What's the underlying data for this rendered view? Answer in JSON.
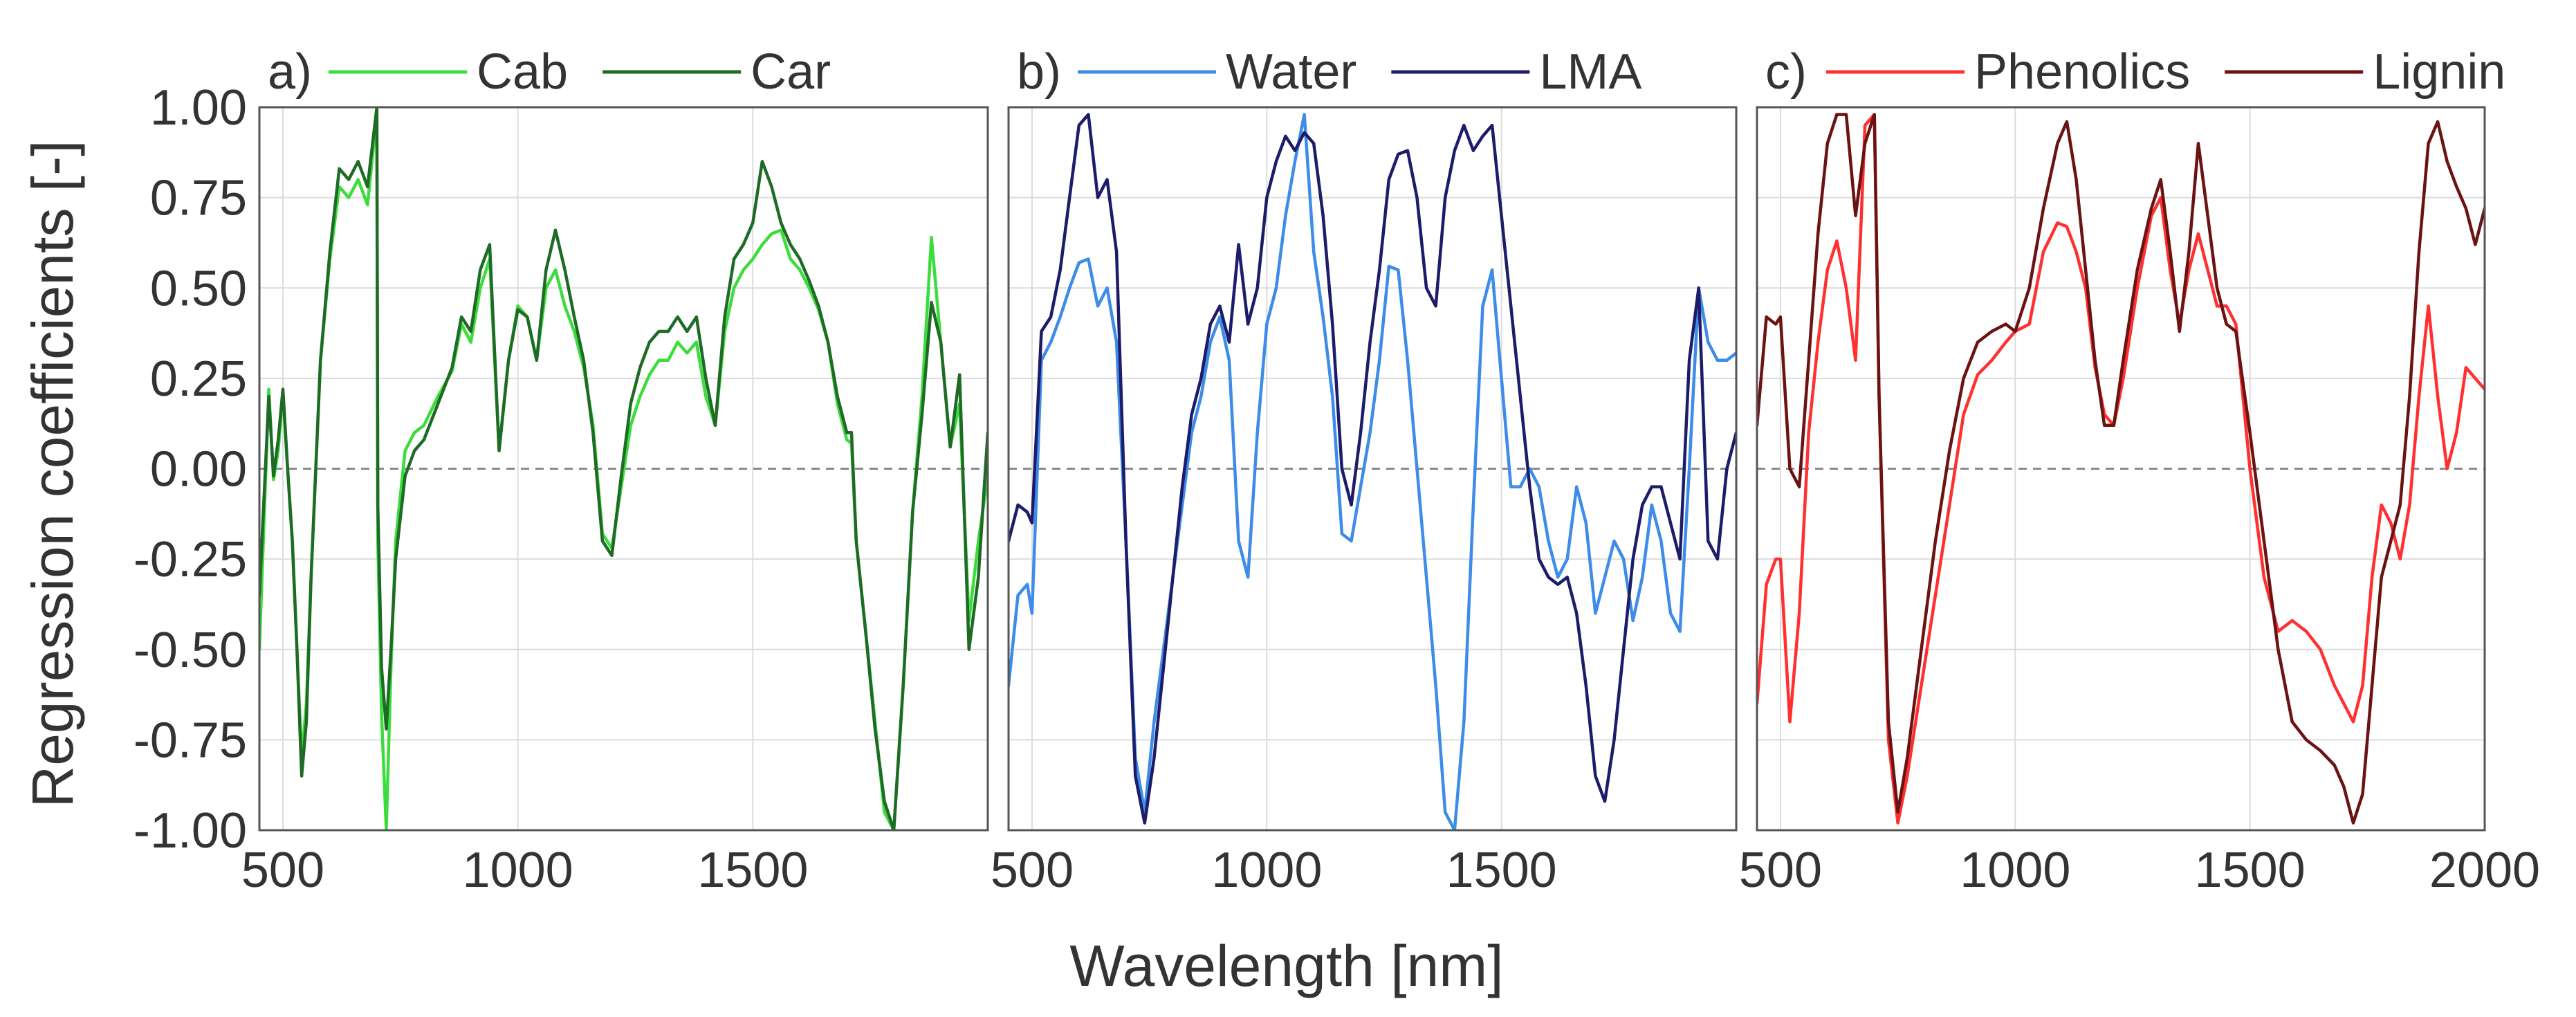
{
  "chart_data": [
    {
      "type": "line",
      "panel_label": "a)",
      "xlabel": "Wavelength [nm]",
      "ylabel": "Regression coefficients [-]",
      "xlim": [
        450,
        2000
      ],
      "ylim": [
        -1.0,
        1.0
      ],
      "xticks": [
        500,
        1000,
        1500
      ],
      "xtick_labels": [
        "500",
        "1000",
        "1500"
      ],
      "yticks": [
        1.0,
        0.75,
        0.5,
        0.25,
        0.0,
        -0.25,
        -0.5,
        -0.75,
        -1.0
      ],
      "ytick_labels": [
        "1.00",
        "0.75",
        "0.50",
        "0.25",
        "0.00",
        "-0.25",
        "-0.50",
        "-0.75",
        "-1.00"
      ],
      "grid": true,
      "zero_line": true,
      "series": [
        {
          "name": "Cab",
          "color": "#3ddc3d",
          "x": [
            450,
            470,
            480,
            490,
            500,
            510,
            520,
            530,
            540,
            550,
            560,
            580,
            600,
            620,
            640,
            660,
            680,
            700,
            702,
            710,
            720,
            730,
            740,
            760,
            780,
            800,
            830,
            860,
            880,
            900,
            920,
            940,
            960,
            980,
            1000,
            1020,
            1040,
            1060,
            1080,
            1100,
            1120,
            1140,
            1160,
            1180,
            1200,
            1220,
            1240,
            1260,
            1280,
            1300,
            1320,
            1340,
            1360,
            1380,
            1400,
            1420,
            1440,
            1460,
            1480,
            1500,
            1520,
            1540,
            1560,
            1580,
            1600,
            1620,
            1640,
            1660,
            1680,
            1700,
            1710,
            1720,
            1740,
            1760,
            1780,
            1800,
            1820,
            1840,
            1860,
            1880,
            1900,
            1920,
            1940,
            1960,
            1980,
            2000
          ],
          "y": [
            -0.5,
            0.22,
            -0.03,
            0.05,
            0.21,
            0.0,
            -0.2,
            -0.5,
            -0.8,
            -0.65,
            -0.3,
            0.3,
            0.58,
            0.78,
            0.75,
            0.8,
            0.73,
            0.98,
            -0.2,
            -0.68,
            -1.0,
            -0.55,
            -0.2,
            0.05,
            0.1,
            0.12,
            0.2,
            0.27,
            0.4,
            0.35,
            0.5,
            0.58,
            0.05,
            0.3,
            0.45,
            0.42,
            0.3,
            0.5,
            0.55,
            0.45,
            0.38,
            0.28,
            0.12,
            -0.18,
            -0.22,
            -0.05,
            0.12,
            0.2,
            0.26,
            0.3,
            0.3,
            0.35,
            0.32,
            0.35,
            0.2,
            0.12,
            0.38,
            0.5,
            0.55,
            0.58,
            0.62,
            0.65,
            0.66,
            0.58,
            0.55,
            0.5,
            0.44,
            0.35,
            0.18,
            0.08,
            0.07,
            -0.2,
            -0.45,
            -0.7,
            -0.95,
            -1.0,
            -0.6,
            -0.12,
            0.2,
            0.64,
            0.35,
            0.06,
            0.18,
            -0.42,
            -0.2,
            -0.02
          ]
        },
        {
          "name": "Car",
          "color": "#1e6b26",
          "x": [
            450,
            470,
            480,
            490,
            500,
            510,
            520,
            530,
            540,
            550,
            560,
            580,
            600,
            620,
            640,
            660,
            680,
            700,
            702,
            710,
            720,
            730,
            740,
            760,
            780,
            800,
            830,
            860,
            880,
            900,
            920,
            940,
            960,
            980,
            1000,
            1020,
            1040,
            1060,
            1080,
            1100,
            1120,
            1140,
            1160,
            1180,
            1200,
            1220,
            1240,
            1260,
            1280,
            1300,
            1320,
            1340,
            1360,
            1380,
            1400,
            1420,
            1440,
            1460,
            1480,
            1500,
            1520,
            1540,
            1560,
            1580,
            1600,
            1620,
            1640,
            1660,
            1680,
            1700,
            1710,
            1720,
            1740,
            1760,
            1780,
            1800,
            1820,
            1840,
            1860,
            1880,
            1900,
            1920,
            1940,
            1960,
            1980,
            2000
          ],
          "y": [
            -0.35,
            0.2,
            -0.02,
            0.08,
            0.22,
            0.0,
            -0.2,
            -0.5,
            -0.85,
            -0.7,
            -0.3,
            0.3,
            0.6,
            0.83,
            0.8,
            0.85,
            0.78,
            1.0,
            -0.1,
            -0.55,
            -0.72,
            -0.5,
            -0.25,
            -0.02,
            0.05,
            0.08,
            0.18,
            0.28,
            0.42,
            0.38,
            0.55,
            0.62,
            0.05,
            0.3,
            0.44,
            0.42,
            0.3,
            0.55,
            0.66,
            0.55,
            0.42,
            0.3,
            0.1,
            -0.2,
            -0.24,
            -0.02,
            0.18,
            0.28,
            0.35,
            0.38,
            0.38,
            0.42,
            0.38,
            0.42,
            0.25,
            0.12,
            0.42,
            0.58,
            0.62,
            0.68,
            0.85,
            0.78,
            0.68,
            0.62,
            0.58,
            0.52,
            0.45,
            0.35,
            0.2,
            0.1,
            0.1,
            -0.2,
            -0.45,
            -0.72,
            -0.92,
            -1.0,
            -0.6,
            -0.12,
            0.15,
            0.46,
            0.35,
            0.06,
            0.26,
            -0.5,
            -0.3,
            0.1
          ]
        }
      ]
    },
    {
      "type": "line",
      "panel_label": "b)",
      "xlim": [
        450,
        2000
      ],
      "ylim": [
        -1.0,
        1.0
      ],
      "xticks": [
        500,
        1000,
        1500
      ],
      "xtick_labels": [
        "500",
        "1000",
        "1500"
      ],
      "grid": true,
      "zero_line": true,
      "series": [
        {
          "name": "Water",
          "color": "#3d8ce8",
          "x": [
            450,
            470,
            490,
            500,
            520,
            540,
            560,
            580,
            600,
            620,
            640,
            660,
            680,
            700,
            720,
            740,
            760,
            780,
            800,
            820,
            840,
            860,
            880,
            900,
            920,
            940,
            960,
            980,
            1000,
            1020,
            1040,
            1060,
            1080,
            1100,
            1120,
            1140,
            1160,
            1180,
            1200,
            1220,
            1240,
            1260,
            1280,
            1300,
            1320,
            1340,
            1360,
            1380,
            1400,
            1420,
            1440,
            1460,
            1480,
            1500,
            1520,
            1540,
            1560,
            1580,
            1600,
            1620,
            1640,
            1660,
            1680,
            1700,
            1720,
            1740,
            1760,
            1780,
            1800,
            1820,
            1840,
            1860,
            1880,
            1900,
            1920,
            1940,
            1960,
            1980,
            2000
          ],
          "y": [
            -0.6,
            -0.35,
            -0.32,
            -0.4,
            0.3,
            0.35,
            0.42,
            0.5,
            0.57,
            0.58,
            0.45,
            0.5,
            0.35,
            -0.2,
            -0.8,
            -0.95,
            -0.7,
            -0.5,
            -0.3,
            -0.1,
            0.1,
            0.2,
            0.35,
            0.42,
            0.3,
            -0.2,
            -0.3,
            0.1,
            0.4,
            0.5,
            0.7,
            0.85,
            0.98,
            0.6,
            0.42,
            0.2,
            -0.18,
            -0.2,
            -0.05,
            0.1,
            0.3,
            0.56,
            0.55,
            0.3,
            0.0,
            -0.3,
            -0.6,
            -0.95,
            -1.0,
            -0.7,
            -0.1,
            0.45,
            0.55,
            0.25,
            -0.05,
            -0.05,
            0.0,
            -0.05,
            -0.2,
            -0.3,
            -0.25,
            -0.05,
            -0.15,
            -0.4,
            -0.3,
            -0.2,
            -0.25,
            -0.42,
            -0.3,
            -0.1,
            -0.2,
            -0.4,
            -0.45,
            0.0,
            0.5,
            0.35,
            0.3,
            0.3,
            0.32
          ]
        },
        {
          "name": "LMA",
          "color": "#1c1c6b",
          "x": [
            450,
            470,
            490,
            500,
            520,
            540,
            560,
            580,
            600,
            620,
            640,
            660,
            680,
            700,
            720,
            740,
            760,
            780,
            800,
            820,
            840,
            860,
            880,
            900,
            920,
            940,
            960,
            980,
            1000,
            1020,
            1040,
            1060,
            1080,
            1100,
            1120,
            1140,
            1160,
            1180,
            1200,
            1220,
            1240,
            1260,
            1280,
            1300,
            1320,
            1340,
            1360,
            1380,
            1400,
            1420,
            1440,
            1460,
            1480,
            1500,
            1520,
            1540,
            1560,
            1580,
            1600,
            1620,
            1640,
            1660,
            1680,
            1700,
            1720,
            1740,
            1760,
            1780,
            1800,
            1820,
            1840,
            1860,
            1880,
            1900,
            1920,
            1940,
            1960,
            1980,
            2000
          ],
          "y": [
            -0.2,
            -0.1,
            -0.12,
            -0.15,
            0.38,
            0.42,
            0.55,
            0.75,
            0.95,
            0.98,
            0.75,
            0.8,
            0.6,
            -0.2,
            -0.85,
            -0.98,
            -0.8,
            -0.55,
            -0.3,
            -0.05,
            0.15,
            0.25,
            0.4,
            0.45,
            0.35,
            0.62,
            0.4,
            0.5,
            0.75,
            0.85,
            0.92,
            0.88,
            0.93,
            0.9,
            0.7,
            0.4,
            0.0,
            -0.1,
            0.1,
            0.35,
            0.55,
            0.8,
            0.87,
            0.88,
            0.75,
            0.5,
            0.45,
            0.75,
            0.88,
            0.95,
            0.88,
            0.92,
            0.95,
            0.7,
            0.45,
            0.2,
            -0.05,
            -0.25,
            -0.3,
            -0.32,
            -0.3,
            -0.4,
            -0.6,
            -0.85,
            -0.92,
            -0.75,
            -0.5,
            -0.25,
            -0.1,
            -0.05,
            -0.05,
            -0.15,
            -0.25,
            0.3,
            0.5,
            -0.2,
            -0.25,
            0.0,
            0.1
          ]
        }
      ]
    },
    {
      "type": "line",
      "panel_label": "c)",
      "xlim": [
        450,
        2000
      ],
      "ylim": [
        -1.0,
        1.0
      ],
      "xticks": [
        500,
        1000,
        1500,
        2000
      ],
      "xtick_labels": [
        "500",
        "1000",
        "1500",
        "2000"
      ],
      "grid": true,
      "zero_line": true,
      "series": [
        {
          "name": "Phenolics",
          "color": "#ff3030",
          "x": [
            450,
            470,
            490,
            500,
            520,
            540,
            560,
            580,
            600,
            620,
            640,
            660,
            680,
            700,
            710,
            730,
            750,
            770,
            800,
            830,
            860,
            890,
            920,
            950,
            980,
            1000,
            1030,
            1060,
            1090,
            1110,
            1130,
            1150,
            1170,
            1190,
            1210,
            1230,
            1260,
            1290,
            1310,
            1330,
            1350,
            1370,
            1390,
            1410,
            1430,
            1450,
            1470,
            1500,
            1530,
            1560,
            1590,
            1620,
            1650,
            1680,
            1700,
            1720,
            1740,
            1760,
            1780,
            1800,
            1820,
            1840,
            1860,
            1880,
            1900,
            1920,
            1940,
            1960,
            1980,
            2000
          ],
          "y": [
            -0.65,
            -0.32,
            -0.25,
            -0.25,
            -0.7,
            -0.4,
            0.1,
            0.35,
            0.55,
            0.63,
            0.5,
            0.3,
            0.95,
            0.98,
            0.2,
            -0.75,
            -0.98,
            -0.85,
            -0.6,
            -0.35,
            -0.1,
            0.15,
            0.26,
            0.3,
            0.35,
            0.38,
            0.4,
            0.6,
            0.68,
            0.67,
            0.6,
            0.5,
            0.28,
            0.15,
            0.12,
            0.25,
            0.5,
            0.7,
            0.75,
            0.55,
            0.4,
            0.55,
            0.65,
            0.55,
            0.45,
            0.45,
            0.4,
            0.0,
            -0.3,
            -0.45,
            -0.42,
            -0.45,
            -0.5,
            -0.6,
            -0.65,
            -0.7,
            -0.6,
            -0.3,
            -0.1,
            -0.15,
            -0.25,
            -0.1,
            0.2,
            0.45,
            0.2,
            0.0,
            0.1,
            0.28,
            0.25,
            0.22
          ]
        },
        {
          "name": "Lignin",
          "color": "#6b1212",
          "x": [
            450,
            470,
            490,
            500,
            520,
            540,
            560,
            580,
            600,
            620,
            640,
            660,
            680,
            700,
            710,
            730,
            750,
            770,
            800,
            830,
            860,
            890,
            920,
            950,
            980,
            1000,
            1030,
            1060,
            1090,
            1110,
            1130,
            1150,
            1170,
            1190,
            1210,
            1230,
            1260,
            1290,
            1310,
            1330,
            1350,
            1370,
            1390,
            1410,
            1430,
            1450,
            1470,
            1500,
            1530,
            1560,
            1590,
            1620,
            1650,
            1680,
            1700,
            1720,
            1740,
            1760,
            1780,
            1800,
            1820,
            1840,
            1860,
            1880,
            1900,
            1920,
            1940,
            1960,
            1980,
            2000
          ],
          "y": [
            0.12,
            0.42,
            0.4,
            0.42,
            0.0,
            -0.05,
            0.3,
            0.65,
            0.9,
            0.98,
            0.98,
            0.7,
            0.9,
            0.98,
            0.2,
            -0.7,
            -0.95,
            -0.8,
            -0.5,
            -0.2,
            0.05,
            0.25,
            0.35,
            0.38,
            0.4,
            0.38,
            0.5,
            0.72,
            0.9,
            0.96,
            0.8,
            0.55,
            0.3,
            0.12,
            0.12,
            0.3,
            0.55,
            0.72,
            0.8,
            0.6,
            0.38,
            0.6,
            0.9,
            0.7,
            0.5,
            0.4,
            0.38,
            0.1,
            -0.2,
            -0.5,
            -0.7,
            -0.75,
            -0.78,
            -0.82,
            -0.88,
            -0.98,
            -0.9,
            -0.6,
            -0.3,
            -0.2,
            -0.1,
            0.2,
            0.6,
            0.9,
            0.96,
            0.85,
            0.78,
            0.72,
            0.62,
            0.72
          ]
        }
      ]
    }
  ]
}
